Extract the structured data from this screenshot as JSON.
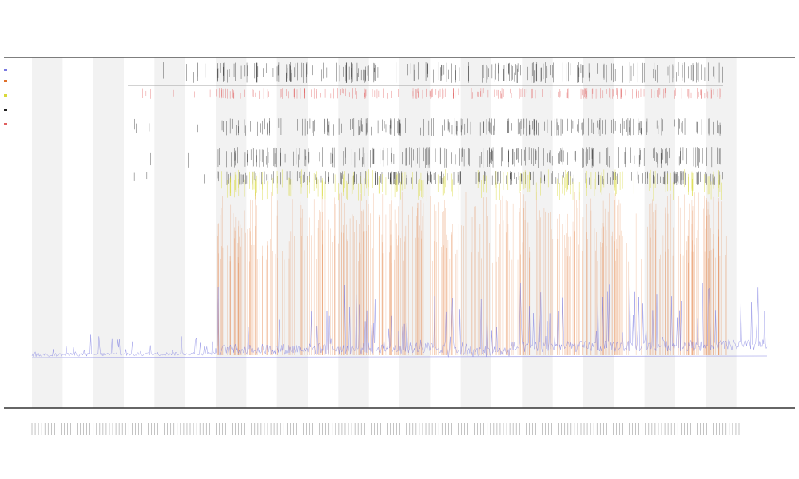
{
  "chart_data": {
    "type": "line",
    "title_lines": [
      "",
      "",
      ""
    ],
    "xlabel": "",
    "ylabel": "",
    "n_bands": 24,
    "bands": [
      "shaded",
      "white",
      "shaded",
      "white",
      "shaded",
      "white",
      "shaded",
      "white",
      "shaded",
      "white",
      "shaded",
      "white",
      "shaded",
      "white",
      "shaded",
      "white",
      "shaded",
      "white",
      "shaded",
      "white",
      "shaded",
      "white",
      "shaded",
      "white"
    ],
    "band_color": "#f2f2f2",
    "series": [
      {
        "name": "",
        "kind": "baseline-line",
        "color": "#7a7ae0",
        "baseline_level": 0.1
      },
      {
        "name": "",
        "kind": "spike-line",
        "color": "#e0702a"
      },
      {
        "name": "",
        "kind": "spike-line",
        "color": "#d9d93a"
      },
      {
        "name": "",
        "kind": "tick-rows",
        "color": "#222222"
      },
      {
        "name": "",
        "kind": "tick-rows",
        "color": "#e06060"
      }
    ],
    "legend_position": "left",
    "grid": false
  }
}
